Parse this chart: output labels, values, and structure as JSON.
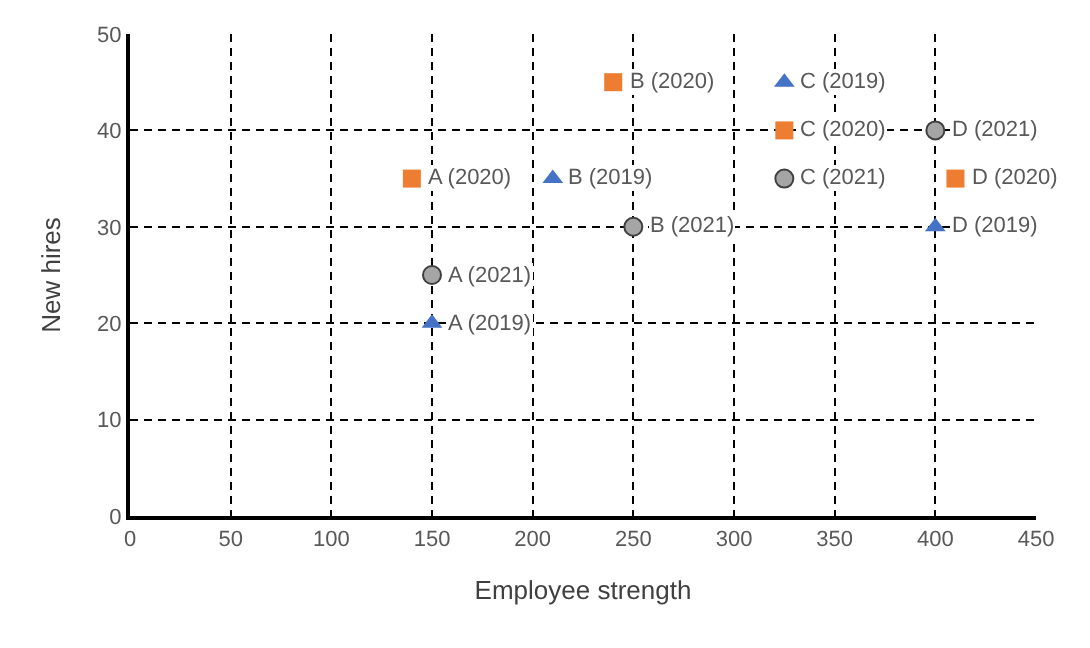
{
  "chart_data": {
    "type": "scatter",
    "xlabel": "Employee strength",
    "ylabel": "New hires",
    "xlim": [
      0,
      450
    ],
    "xticks": [
      0,
      50,
      100,
      150,
      200,
      250,
      300,
      350,
      400,
      450
    ],
    "ylim": [
      0,
      50
    ],
    "yticks": [
      0,
      10,
      20,
      30,
      40,
      50
    ],
    "grid": true,
    "series": [
      {
        "color": "#4472c4",
        "marker": "triangle",
        "x": [
          150,
          210,
          325,
          400
        ],
        "values": [
          20,
          35,
          45,
          30
        ]
      },
      {
        "color": "#ed7d31",
        "marker": "square",
        "x": [
          140,
          240,
          325,
          410
        ],
        "values": [
          35,
          45,
          40,
          35
        ]
      },
      {
        "color": "#a5a5a5",
        "marker": "circle",
        "x": [
          150,
          250,
          325,
          400
        ],
        "values": [
          25,
          30,
          35,
          40
        ]
      }
    ],
    "annotations": [
      {
        "text": "A (2019)",
        "x": 150,
        "y": 20
      },
      {
        "text": "B (2019)",
        "x": 210,
        "y": 35
      },
      {
        "text": "C (2019)",
        "x": 325,
        "y": 45
      },
      {
        "text": "D (2019)",
        "x": 400,
        "y": 30
      },
      {
        "text": "A (2020)",
        "x": 140,
        "y": 35
      },
      {
        "text": "B (2020)",
        "x": 240,
        "y": 45
      },
      {
        "text": "C (2020)",
        "x": 325,
        "y": 40
      },
      {
        "text": "D (2020)",
        "x": 410,
        "y": 35
      },
      {
        "text": "A (2021)",
        "x": 150,
        "y": 25
      },
      {
        "text": "B (2021)",
        "x": 250,
        "y": 30
      },
      {
        "text": "C (2021)",
        "x": 325,
        "y": 35
      },
      {
        "text": "D (2021)",
        "x": 400,
        "y": 40
      }
    ]
  }
}
